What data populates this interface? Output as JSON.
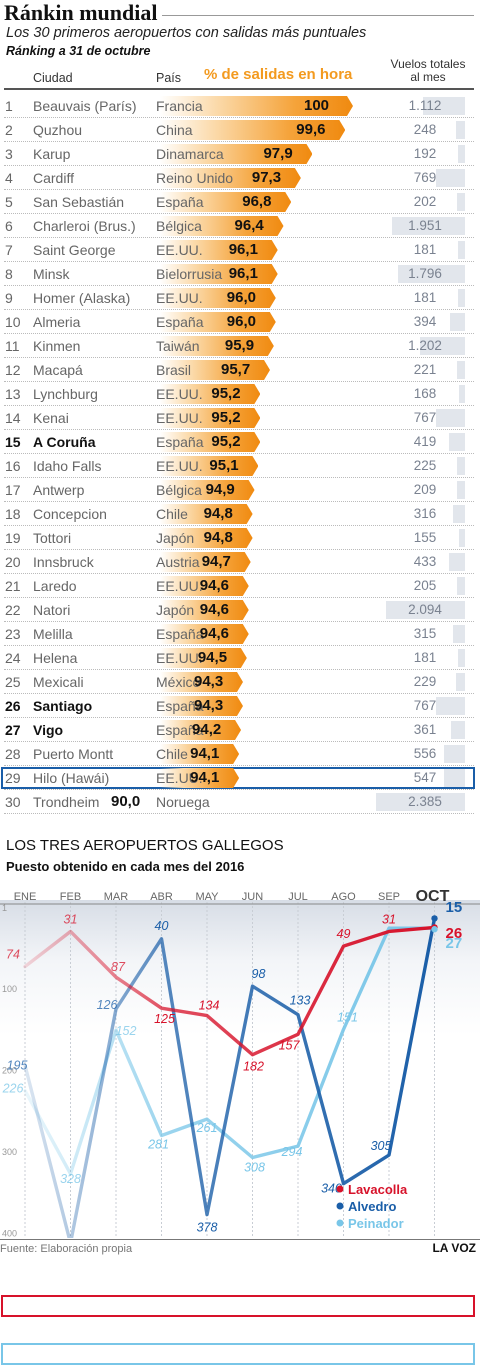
{
  "header": {
    "title": "Ránkin mundial",
    "subtitle": "Los 30 primeros aeropuertos con salidas más puntuales",
    "date": "Ránking a 31 de octubre"
  },
  "columns": {
    "city": "Ciudad",
    "country": "País",
    "pct": "% de salidas en hora",
    "flights_line1": "Vuelos totales",
    "flights_line2": "al mes"
  },
  "colors": {
    "orange": "#f39a1f",
    "lavacolla": "#d7122a",
    "alvedro": "#1a5ea8",
    "peinador": "#79c6e8",
    "coruna_box": "#1a5ea8",
    "santiago_box": "#d7122a",
    "vigo_box": "#79c6e8"
  },
  "chart_data": [
    {
      "type": "bar",
      "title": "% de salidas en hora",
      "rows": [
        {
          "rank": "1",
          "city": "Beauvais (París)",
          "country": "Francia",
          "value": "100",
          "flights": "1.112"
        },
        {
          "rank": "2",
          "city": "Quzhou",
          "country": "China",
          "value": "99,6",
          "flights": "248"
        },
        {
          "rank": "3",
          "city": "Karup",
          "country": "Dinamarca",
          "value": "97,9",
          "flights": "192"
        },
        {
          "rank": "4",
          "city": "Cardiff",
          "country": "Reino Unido",
          "value": "97,3",
          "flights": "769"
        },
        {
          "rank": "5",
          "city": "San Sebastián",
          "country": "España",
          "value": "96,8",
          "flights": "202"
        },
        {
          "rank": "6",
          "city": "Charleroi (Brus.)",
          "country": "Bélgica",
          "value": "96,4",
          "flights": "1.951"
        },
        {
          "rank": "7",
          "city": "Saint George",
          "country": "EE.UU.",
          "value": "96,1",
          "flights": "181"
        },
        {
          "rank": "8",
          "city": "Minsk",
          "country": "Bielorrusia",
          "value": "96,1",
          "flights": "1.796"
        },
        {
          "rank": "9",
          "city": "Homer (Alaska)",
          "country": "EE.UU.",
          "value": "96,0",
          "flights": "181"
        },
        {
          "rank": "10",
          "city": "Almeria",
          "country": "España",
          "value": "96,0",
          "flights": "394"
        },
        {
          "rank": "11",
          "city": "Kinmen",
          "country": "Taiwán",
          "value": "95,9",
          "flights": "1.202"
        },
        {
          "rank": "12",
          "city": "Macapá",
          "country": "Brasil",
          "value": "95,7",
          "flights": "221"
        },
        {
          "rank": "13",
          "city": "Lynchburg",
          "country": "EE.UU.",
          "value": "95,2",
          "flights": "168"
        },
        {
          "rank": "14",
          "city": "Kenai",
          "country": "EE.UU.",
          "value": "95,2",
          "flights": "767"
        },
        {
          "rank": "15",
          "city": "A Coruña",
          "country": "España",
          "value": "95,2",
          "flights": "419",
          "highlight": "coruna_box"
        },
        {
          "rank": "16",
          "city": "Idaho Falls",
          "country": "EE.UU.",
          "value": "95,1",
          "flights": "225"
        },
        {
          "rank": "17",
          "city": "Antwerp",
          "country": "Bélgica",
          "value": "94,9",
          "flights": "209"
        },
        {
          "rank": "18",
          "city": "Concepcion",
          "country": "Chile",
          "value": "94,8",
          "flights": "316"
        },
        {
          "rank": "19",
          "city": "Tottori",
          "country": "Japón",
          "value": "94,8",
          "flights": "155"
        },
        {
          "rank": "20",
          "city": "Innsbruck",
          "country": "Austria",
          "value": "94,7",
          "flights": "433"
        },
        {
          "rank": "21",
          "city": "Laredo",
          "country": "EE.UU.",
          "value": "94,6",
          "flights": "205"
        },
        {
          "rank": "22",
          "city": "Natori",
          "country": "Japón",
          "value": "94,6",
          "flights": "2.094"
        },
        {
          "rank": "23",
          "city": "Melilla",
          "country": "España",
          "value": "94,6",
          "flights": "315"
        },
        {
          "rank": "24",
          "city": "Helena",
          "country": "EE.UU.",
          "value": "94,5",
          "flights": "181"
        },
        {
          "rank": "25",
          "city": "Mexicali",
          "country": "México",
          "value": "94,3",
          "flights": "229"
        },
        {
          "rank": "26",
          "city": "Santiago",
          "country": "España",
          "value": "94,3",
          "flights": "767",
          "highlight": "santiago_box"
        },
        {
          "rank": "27",
          "city": "Vigo",
          "country": "España",
          "value": "94,2",
          "flights": "361",
          "highlight": "vigo_box"
        },
        {
          "rank": "28",
          "city": "Puerto Montt",
          "country": "Chile",
          "value": "94,1",
          "flights": "556"
        },
        {
          "rank": "29",
          "city": "Hilo (Hawái)",
          "country": "EE.UU.",
          "value": "94,1",
          "flights": "547"
        },
        {
          "rank": "30",
          "city": "Trondheim",
          "country": "Noruega",
          "value": "90,0",
          "flights": "2.385"
        }
      ]
    },
    {
      "type": "line",
      "title": "LOS TRES AEROPUERTOS GALLEGOS",
      "subtitle": "Puesto obtenido en cada mes del 2016",
      "categories": [
        "ENE",
        "FEB",
        "MAR",
        "ABR",
        "MAY",
        "JUN",
        "JUL",
        "AGO",
        "SEP",
        "OCT"
      ],
      "y_ticks": [
        "1",
        "100",
        "200",
        "300",
        "400"
      ],
      "ylim": [
        1,
        413
      ],
      "y_inverted": true,
      "legend_position": "bottom-right",
      "series": [
        {
          "name": "Lavacolla",
          "color": "#d7122a",
          "values": [
            74,
            31,
            87,
            125,
            134,
            182,
            157,
            49,
            31,
            26
          ]
        },
        {
          "name": "Alvedro",
          "color": "#1a5ea8",
          "values": [
            195,
            413,
            126,
            40,
            378,
            98,
            133,
            340,
            305,
            15
          ]
        },
        {
          "name": "Peinador",
          "color": "#79c6e8",
          "values": [
            226,
            328,
            152,
            281,
            261,
            308,
            294,
            151,
            27,
            27
          ]
        }
      ]
    }
  ],
  "footer": {
    "source": "Fuente: Elaboración propia",
    "brand": "LA VOZ"
  }
}
